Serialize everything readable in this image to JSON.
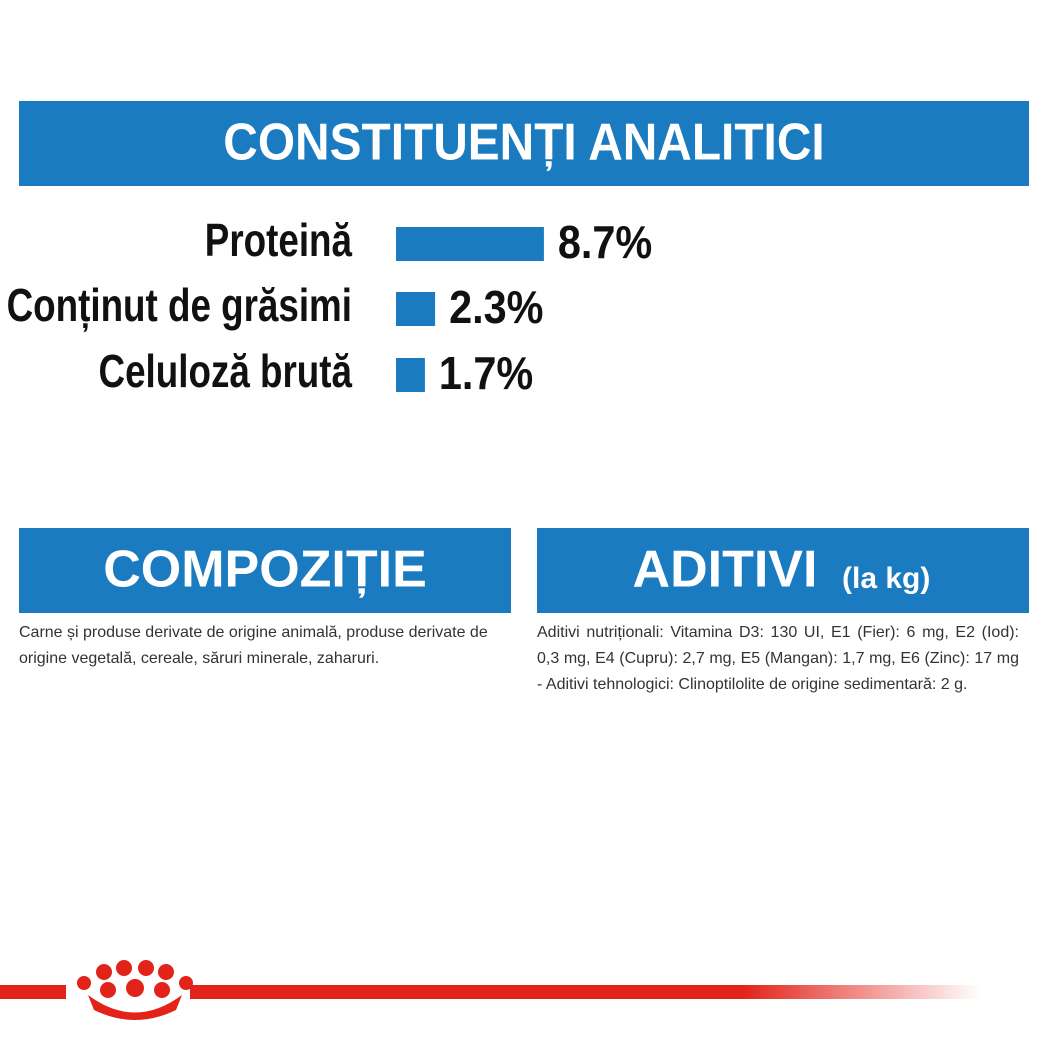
{
  "chart_data": {
    "type": "bar",
    "title": "CONSTITUENȚI ANALITICI",
    "categories": [
      "Proteină",
      "Conținut de grăsimi",
      "Celuloză brută"
    ],
    "values": [
      8.7,
      2.3,
      1.7
    ],
    "value_labels": [
      "8.7%",
      "2.3%",
      "1.7%"
    ],
    "color": "#1a7bc0"
  },
  "composition": {
    "title": "COMPOZIȚIE",
    "text": "Carne și produse derivate de origine animală, produse derivate de origine vegetală, cereale, săruri minerale, zaharuri."
  },
  "additives": {
    "title": "ADITIVI",
    "subtitle": "(la kg)",
    "text": "Aditivi nutriționali: Vitamina D3: 130 UI, E1 (Fier): 6 mg, E2 (Iod): 0,3 mg, E4 (Cupru): 2,7 mg, E5 (Mangan): 1,7 mg, E6 (Zinc): 17 mg - Aditivi tehnologici: Clinoptilolite de origine sedimentară: 2 g."
  }
}
